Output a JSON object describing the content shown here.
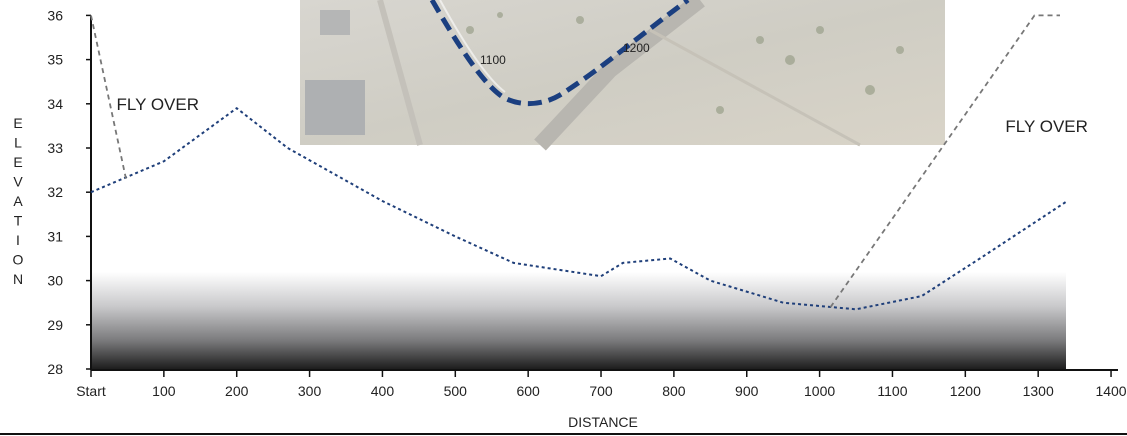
{
  "chart_data": {
    "type": "line",
    "xlabel": "DISTANCE",
    "ylabel": "ELEVATION",
    "xlim": [
      0,
      1400
    ],
    "ylim": [
      28,
      36
    ],
    "x_ticks": [
      {
        "value": 0,
        "label": "Start"
      },
      {
        "value": 100,
        "label": "100"
      },
      {
        "value": 200,
        "label": "200"
      },
      {
        "value": 300,
        "label": "300"
      },
      {
        "value": 400,
        "label": "400"
      },
      {
        "value": 500,
        "label": "500"
      },
      {
        "value": 600,
        "label": "600"
      },
      {
        "value": 700,
        "label": "700"
      },
      {
        "value": 800,
        "label": "800"
      },
      {
        "value": 900,
        "label": "900"
      },
      {
        "value": 1000,
        "label": "1000"
      },
      {
        "value": 1100,
        "label": "1100"
      },
      {
        "value": 1200,
        "label": "1200"
      },
      {
        "value": 1300,
        "label": "1300"
      },
      {
        "value": 1400,
        "label": "1400"
      }
    ],
    "y_ticks": [
      28,
      29,
      30,
      31,
      32,
      33,
      34,
      35,
      36
    ],
    "series": [
      {
        "style": "dotted",
        "color": "#1f3f7a",
        "points": [
          [
            0,
            32.0
          ],
          [
            100,
            32.7
          ],
          [
            200,
            33.9
          ],
          [
            270,
            33.0
          ],
          [
            400,
            31.8
          ],
          [
            500,
            31.0
          ],
          [
            580,
            30.4
          ],
          [
            700,
            30.1
          ],
          [
            730,
            30.4
          ],
          [
            795,
            30.5
          ],
          [
            850,
            30.0
          ],
          [
            950,
            29.5
          ],
          [
            1050,
            29.35
          ],
          [
            1140,
            29.65
          ],
          [
            1220,
            30.5
          ],
          [
            1340,
            31.8
          ]
        ]
      },
      {
        "style": "dashed",
        "color": "#777777",
        "points": [
          [
            0,
            36.0
          ],
          [
            48,
            32.3
          ]
        ]
      },
      {
        "style": "dashed",
        "color": "#777777",
        "points": [
          [
            1015,
            29.4
          ],
          [
            1295,
            36.0
          ],
          [
            1330,
            36.0
          ]
        ]
      }
    ],
    "annotations": [
      {
        "text": "FLY OVER",
        "x": 35,
        "y": 34.0
      },
      {
        "text": "FLY OVER",
        "x": 1255,
        "y": 33.5
      }
    ]
  },
  "inset_map": {
    "labels": [
      "1100",
      "1200"
    ],
    "route_color": "#1b3f80"
  }
}
